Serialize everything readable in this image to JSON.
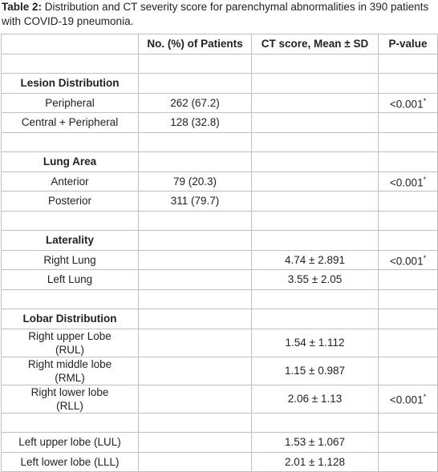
{
  "caption": {
    "label": "Table 2:",
    "text": "Distribution and CT severity score for parenchymal abnormalities in 390 patients with COVID-19 pneumonia."
  },
  "table": {
    "header": [
      "No. (%) of Patients",
      "CT score, Mean ± SD",
      "P-value"
    ],
    "sections": [
      {
        "title": "Lesion Distribution",
        "rows": [
          {
            "label": "Peripheral",
            "n": "262 (67.2)",
            "p": "<0.001",
            "p_note": "*"
          },
          {
            "label": "Central + Peripheral",
            "n": "128 (32.8)"
          }
        ]
      },
      {
        "title": "Lung Area",
        "rows": [
          {
            "label": "Anterior",
            "n": "79 (20.3)",
            "p": "<0.001",
            "p_note": "*"
          },
          {
            "label": "Posterior",
            "n": "311 (79.7)"
          }
        ]
      },
      {
        "title": "Laterality",
        "rows": [
          {
            "label": "Right Lung",
            "ct": "4.74 ± 2.891",
            "p": "<0.001",
            "p_note": "*"
          },
          {
            "label": "Left Lung",
            "ct": "3.55 ± 2.05"
          }
        ]
      },
      {
        "title": "Lobar Distribution",
        "rows": [
          {
            "label": "Right upper Lobe (RUL)",
            "ct": "1.54 ± 1.112"
          },
          {
            "label": "Right middle lobe (RML)",
            "ct": "1.15 ± 0.987"
          },
          {
            "label": "Right lower lobe (RLL)",
            "ct": "2.06 ± 1.13",
            "p": "<0.001",
            "p_note": "*"
          },
          null,
          {
            "label": "Left upper lobe (LUL)",
            "ct": "1.53 ± 1.067"
          },
          {
            "label": "Left lower lobe (LLL)",
            "ct": "2.01 ± 1.128"
          }
        ]
      }
    ]
  }
}
